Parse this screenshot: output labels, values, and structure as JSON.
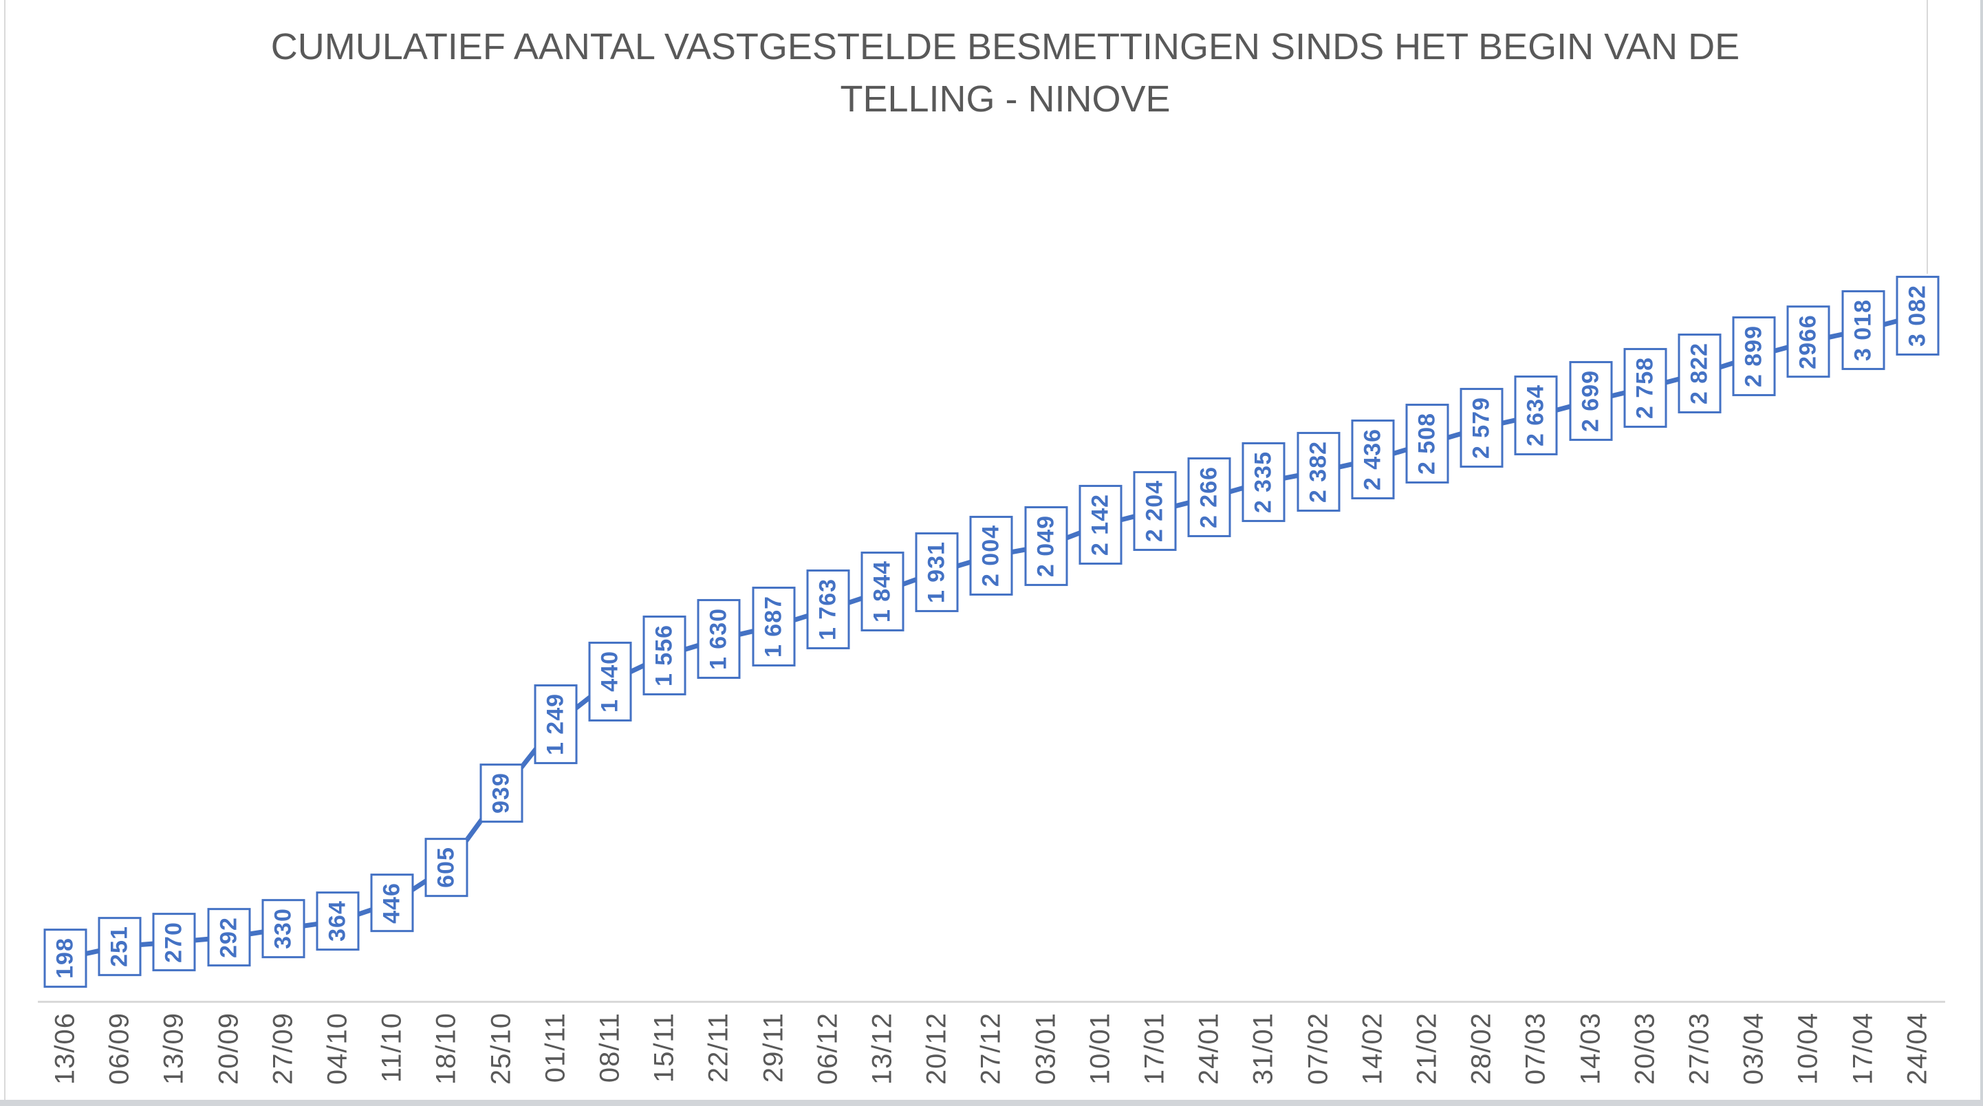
{
  "title": {
    "line1": "CUMULATIEF AANTAL VASTGESTELDE BESMETTINGEN SINDS HET BEGIN VAN DE",
    "line2": "TELLING - NINOVE"
  },
  "chart_data": {
    "type": "line",
    "title": "CUMULATIEF AANTAL VASTGESTELDE BESMETTINGEN SINDS HET BEGIN VAN DE TELLING - NINOVE",
    "categories": [
      "13/06",
      "06/09",
      "13/09",
      "20/09",
      "27/09",
      "04/10",
      "11/10",
      "18/10",
      "25/10",
      "01/11",
      "08/11",
      "15/11",
      "22/11",
      "29/11",
      "06/12",
      "13/12",
      "20/12",
      "27/12",
      "03/01",
      "10/01",
      "17/01",
      "24/01",
      "31/01",
      "07/02",
      "14/02",
      "21/02",
      "28/02",
      "07/03",
      "14/03",
      "20/03",
      "27/03",
      "03/04",
      "10/04",
      "17/04",
      "24/04"
    ],
    "values": [
      198,
      251,
      270,
      292,
      330,
      364,
      446,
      605,
      939,
      1249,
      1440,
      1556,
      1630,
      1687,
      1763,
      1844,
      1931,
      2004,
      2049,
      2142,
      2204,
      2266,
      2335,
      2382,
      2436,
      2508,
      2579,
      2634,
      2699,
      2758,
      2822,
      2899,
      2966,
      3018,
      3082
    ],
    "data_labels": [
      "198",
      "251",
      "270",
      "292",
      "330",
      "364",
      "446",
      "605",
      "939",
      "1 249",
      "1 440",
      "1 556",
      "1 630",
      "1 687",
      "1 763",
      "1 844",
      "1 931",
      "2 004",
      "2 049",
      "2 142",
      "2 204",
      "2 266",
      "2 335",
      "2 382",
      "2 436",
      "2 508",
      "2 579",
      "2 634",
      "2 699",
      "2 758",
      "2 822",
      "2 899",
      "2966",
      "3 018",
      "3 082"
    ],
    "xlabel": "",
    "ylabel": "",
    "ylim": [
      0,
      3300
    ],
    "legend": "none",
    "gridlines": false,
    "y_axis_visible": false,
    "x_tick_rotation": 90,
    "data_label_style": "boxed-rotated-90",
    "series_color": "#4472C4",
    "label_border_color": "#4472C4",
    "label_text_color": "#4472C4",
    "axis_line_color": "#D9D9D9",
    "tick_text_color": "#595959",
    "title_color": "#595959"
  }
}
